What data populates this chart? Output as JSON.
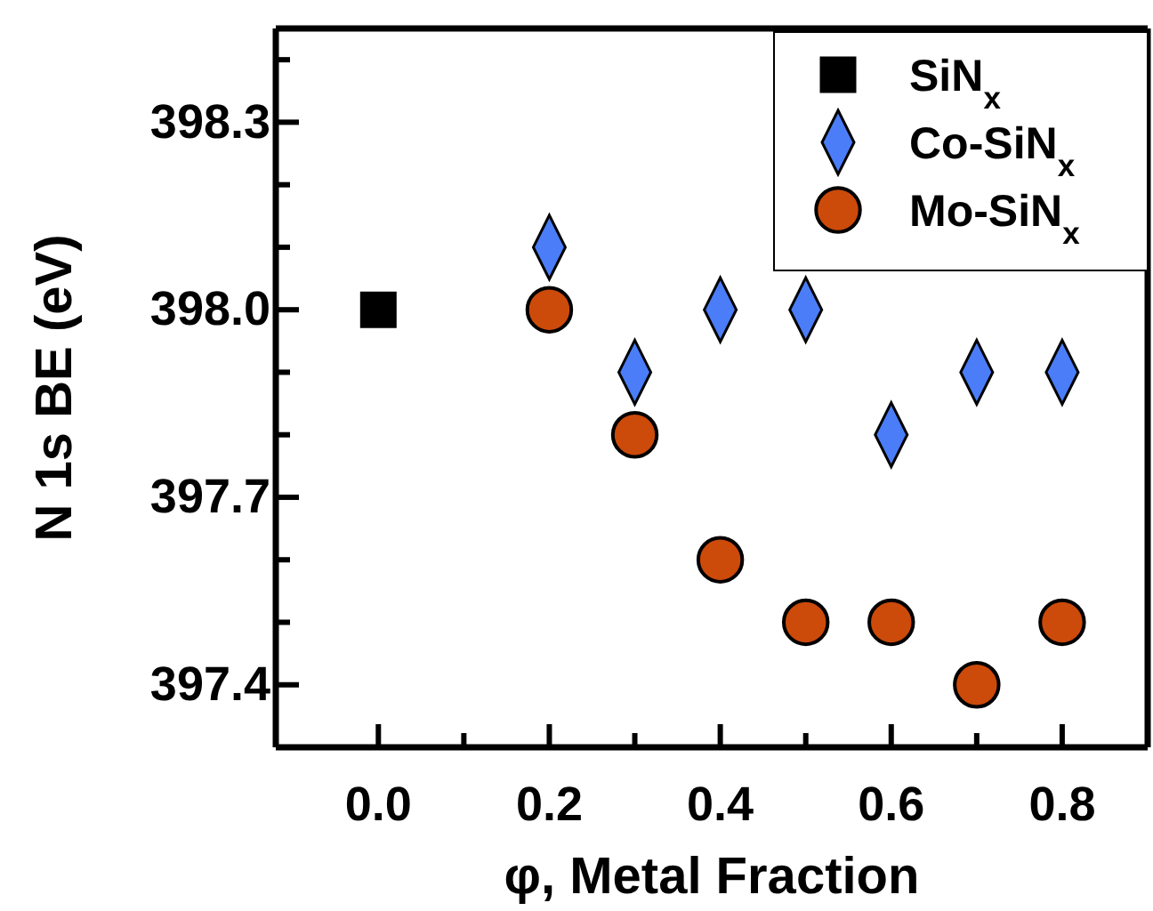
{
  "chart_data": {
    "type": "scatter",
    "xlabel": "φ, Metal Fraction",
    "ylabel": "N 1s BE (eV)",
    "xlim": [
      -0.12,
      0.9
    ],
    "ylim": [
      397.3,
      398.45
    ],
    "xticks": [
      {
        "value": 0,
        "label": "0.0"
      },
      {
        "value": 0.1,
        "label": null
      },
      0.2,
      {
        "value": 0.3,
        "label": null
      },
      0.4,
      {
        "value": 0.5,
        "label": null
      },
      0.6,
      {
        "value": 0.7,
        "label": null
      },
      0.8
    ],
    "yticks": [
      397.4,
      {
        "value": 397.5,
        "label": null
      },
      {
        "value": 397.6,
        "label": null
      },
      397.7,
      {
        "value": 397.8,
        "label": null
      },
      {
        "value": 397.9,
        "label": null
      },
      {
        "value": 398,
        "label": "398.0"
      },
      {
        "value": 398.1,
        "label": null
      },
      {
        "value": 398.2,
        "label": null
      },
      398.3,
      {
        "value": 398.4,
        "label": null
      }
    ],
    "grid": false,
    "legend": "top right",
    "series": [
      {
        "name": "SiN$_{x}$",
        "color": "#000000",
        "marker": "square",
        "x": [
          0.0
        ],
        "values": [
          398.0
        ]
      },
      {
        "name": "Co-SiN$_{x}$",
        "color": "#4a7df7",
        "marker": "diamond",
        "x": [
          0.2,
          0.3,
          0.4,
          0.5,
          0.6,
          0.7,
          0.8
        ],
        "values": [
          398.1,
          397.9,
          398.0,
          398.0,
          397.8,
          397.9,
          397.9
        ]
      },
      {
        "name": "Mo-SiN$_{x}$",
        "color": "#cc4a0a",
        "marker": "circle",
        "x": [
          0.2,
          0.3,
          0.4,
          0.5,
          0.6,
          0.7,
          0.8
        ],
        "values": [
          398.0,
          397.8,
          397.6,
          397.5,
          397.5,
          397.4,
          397.5
        ]
      }
    ]
  }
}
